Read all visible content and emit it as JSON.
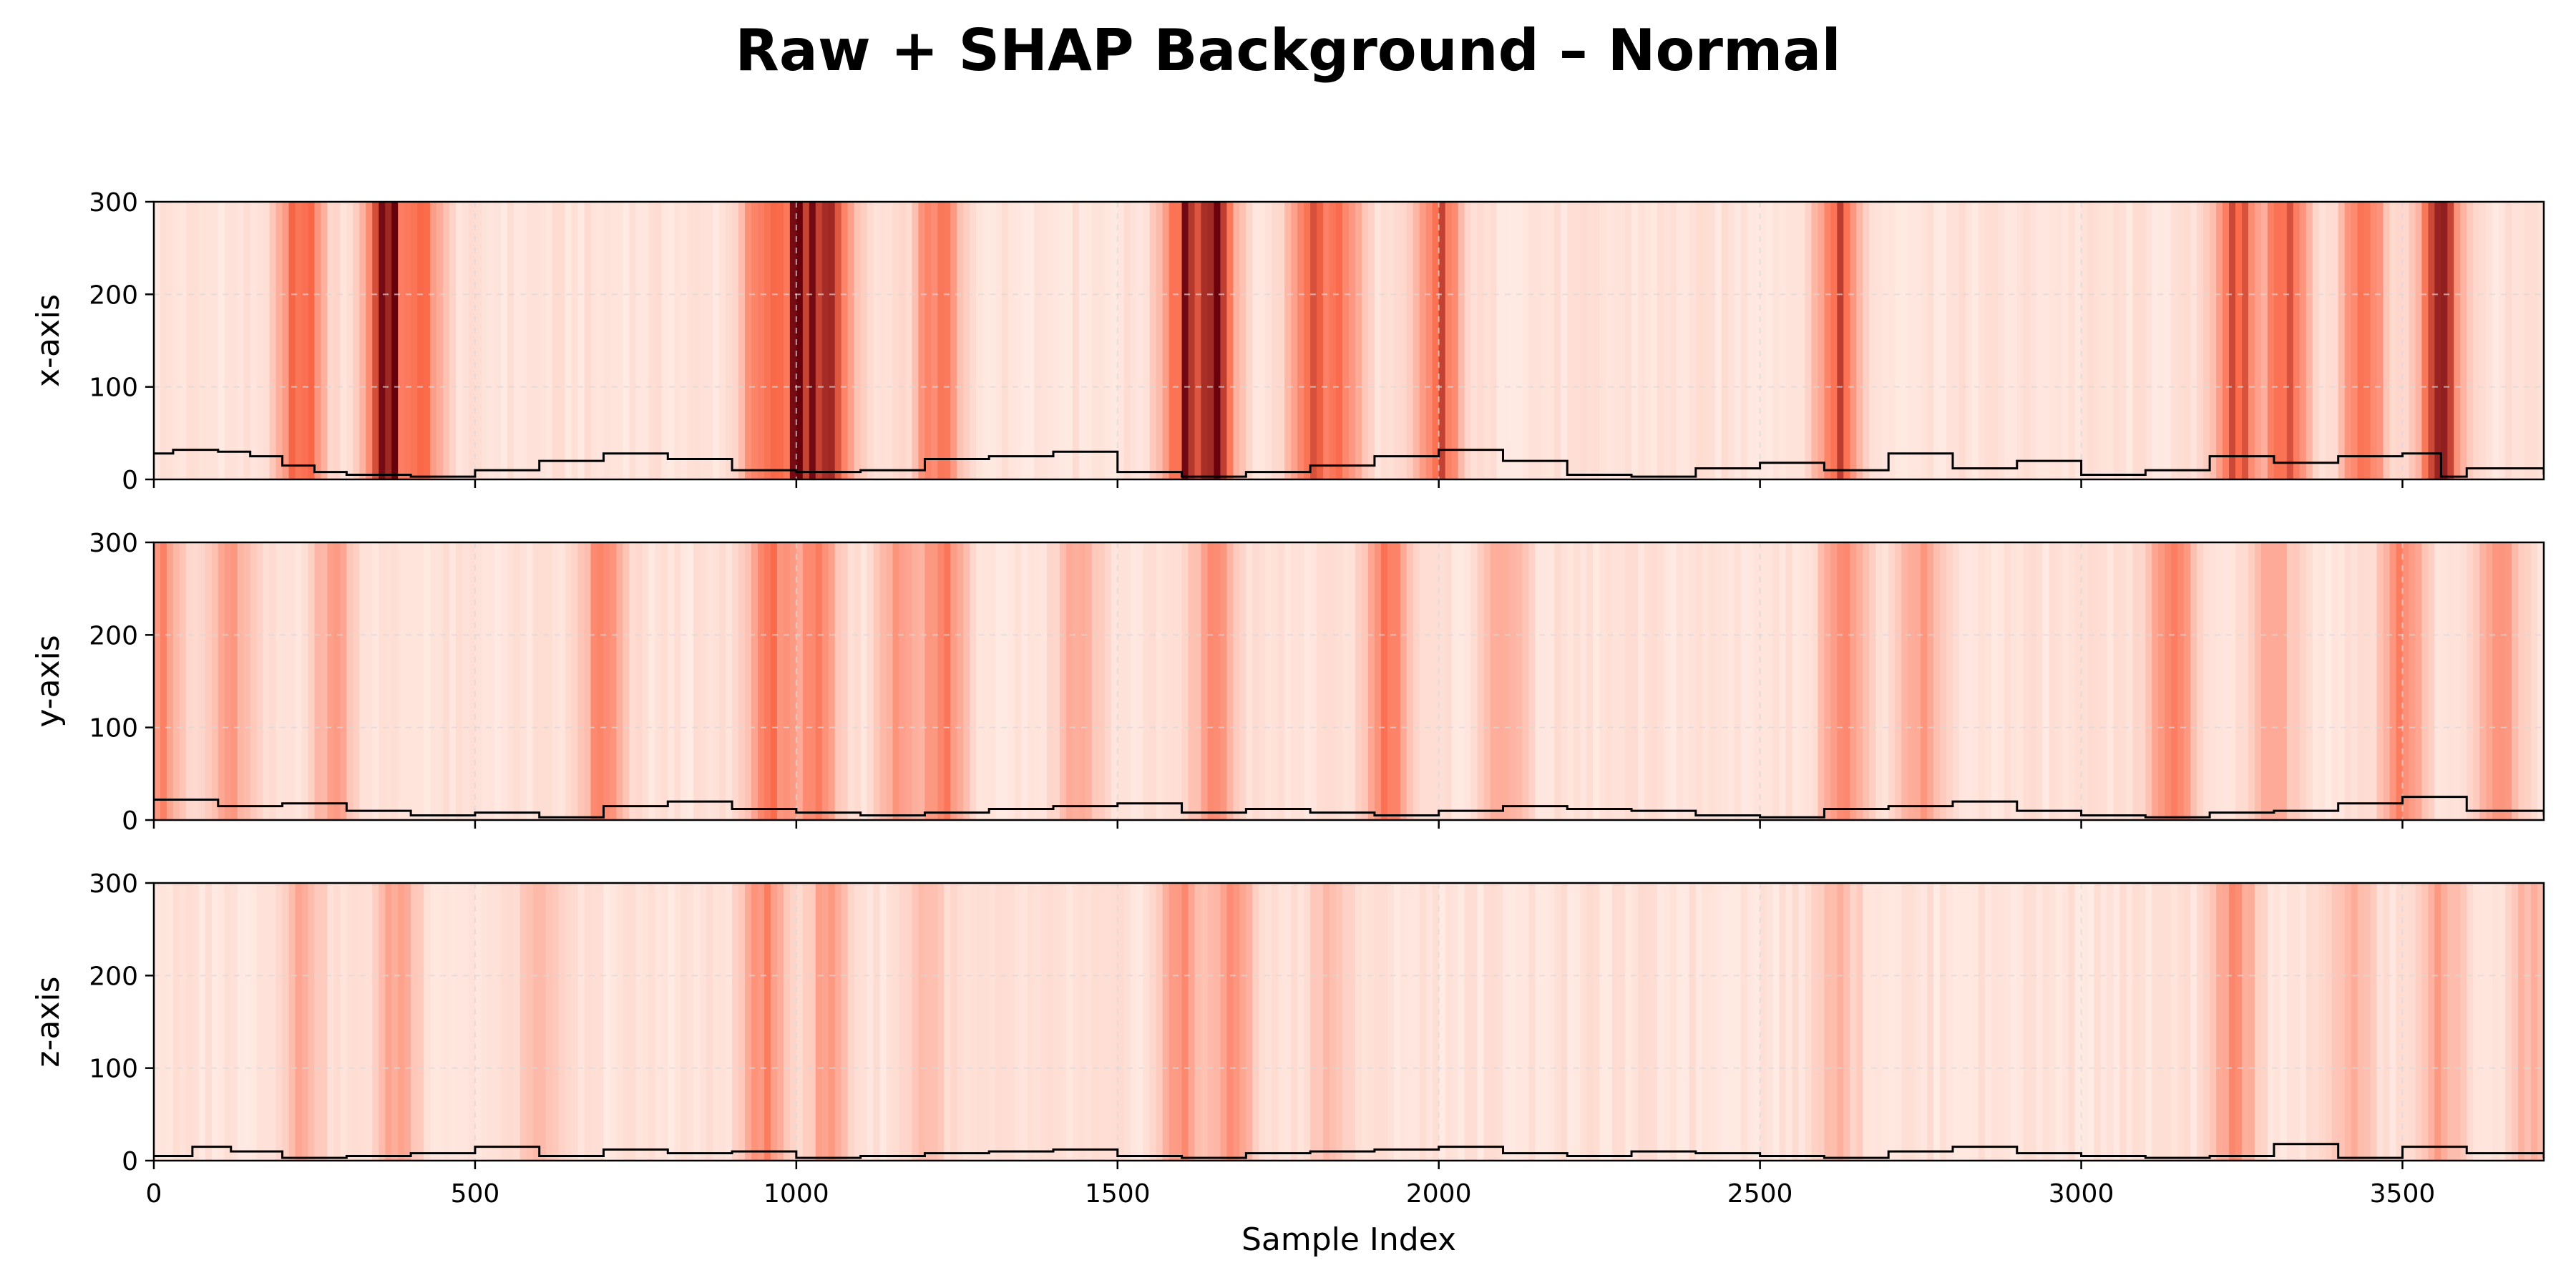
{
  "figure": {
    "title": "Raw + SHAP Background – Normal"
  },
  "chart_data": [
    {
      "type": "line",
      "ylabel": "x-axis",
      "xlim": [
        0,
        3720
      ],
      "ylim": [
        0,
        300
      ],
      "xticks": [
        0,
        500,
        1000,
        1500,
        2000,
        2500,
        3000,
        3500
      ],
      "yticks": [
        0,
        100,
        200,
        300
      ],
      "grid": true,
      "background": "SHAP importance heatmap (Reds colormap)",
      "background_peaks": [
        [
          230,
          0.75
        ],
        [
          360,
          0.92
        ],
        [
          420,
          0.6
        ],
        [
          950,
          0.65
        ],
        [
          1010,
          0.92
        ],
        [
          1060,
          0.65
        ],
        [
          1220,
          0.62
        ],
        [
          1600,
          0.7
        ],
        [
          1650,
          0.92
        ],
        [
          1800,
          0.6
        ],
        [
          1850,
          0.55
        ],
        [
          2000,
          0.72
        ],
        [
          2620,
          0.7
        ],
        [
          3240,
          0.78
        ],
        [
          3320,
          0.7
        ],
        [
          3440,
          0.62
        ],
        [
          3560,
          0.95
        ]
      ],
      "series": [
        {
          "x": [
            0,
            30,
            100,
            150,
            200,
            250,
            300,
            400,
            500,
            600,
            700,
            800,
            900,
            1000,
            1100,
            1200,
            1300,
            1400,
            1500,
            1600,
            1700,
            1800,
            1900,
            2000,
            2100,
            2200,
            2300,
            2400,
            2500,
            2600,
            2700,
            2800,
            2900,
            3000,
            3100,
            3200,
            3300,
            3400,
            3500,
            3560,
            3600,
            3720
          ],
          "y": [
            28,
            32,
            30,
            25,
            15,
            8,
            5,
            3,
            10,
            20,
            28,
            22,
            10,
            8,
            10,
            22,
            25,
            30,
            8,
            3,
            8,
            15,
            25,
            32,
            20,
            5,
            3,
            12,
            18,
            10,
            28,
            12,
            20,
            5,
            10,
            25,
            18,
            25,
            28,
            3,
            12,
            5
          ]
        }
      ]
    },
    {
      "type": "line",
      "ylabel": "y-axis",
      "xlim": [
        0,
        3720
      ],
      "ylim": [
        0,
        300
      ],
      "xticks": [
        0,
        500,
        1000,
        1500,
        2000,
        2500,
        3000,
        3500
      ],
      "yticks": [
        0,
        100,
        200,
        300
      ],
      "grid": true,
      "background": "SHAP importance heatmap (Reds colormap)",
      "background_peaks": [
        [
          10,
          0.5
        ],
        [
          120,
          0.4
        ],
        [
          280,
          0.35
        ],
        [
          700,
          0.5
        ],
        [
          960,
          0.6
        ],
        [
          1030,
          0.55
        ],
        [
          1160,
          0.4
        ],
        [
          1230,
          0.55
        ],
        [
          1440,
          0.35
        ],
        [
          1650,
          0.45
        ],
        [
          1920,
          0.6
        ],
        [
          2100,
          0.35
        ],
        [
          2630,
          0.6
        ],
        [
          2750,
          0.35
        ],
        [
          3140,
          0.6
        ],
        [
          3300,
          0.4
        ],
        [
          3500,
          0.55
        ],
        [
          3650,
          0.4
        ]
      ],
      "series": [
        {
          "x": [
            0,
            100,
            200,
            300,
            400,
            500,
            600,
            700,
            800,
            900,
            1000,
            1100,
            1200,
            1300,
            1400,
            1500,
            1600,
            1700,
            1800,
            1900,
            2000,
            2100,
            2200,
            2300,
            2400,
            2500,
            2600,
            2700,
            2800,
            2900,
            3000,
            3100,
            3200,
            3300,
            3400,
            3500,
            3600,
            3720
          ],
          "y": [
            22,
            15,
            18,
            10,
            5,
            8,
            3,
            15,
            20,
            12,
            8,
            5,
            8,
            12,
            15,
            18,
            8,
            12,
            8,
            5,
            10,
            15,
            12,
            10,
            5,
            3,
            12,
            15,
            20,
            10,
            5,
            3,
            8,
            10,
            18,
            25,
            10,
            5
          ]
        }
      ]
    },
    {
      "type": "line",
      "xlabel": "Sample Index",
      "ylabel": "z-axis",
      "xlim": [
        0,
        3720
      ],
      "ylim": [
        0,
        300
      ],
      "xticks": [
        0,
        500,
        1000,
        1500,
        2000,
        2500,
        3000,
        3500
      ],
      "yticks": [
        0,
        100,
        200,
        300
      ],
      "grid": true,
      "background": "SHAP importance heatmap (Reds colormap)",
      "background_peaks": [
        [
          230,
          0.3
        ],
        [
          380,
          0.35
        ],
        [
          600,
          0.22
        ],
        [
          950,
          0.5
        ],
        [
          1050,
          0.35
        ],
        [
          1200,
          0.22
        ],
        [
          1600,
          0.45
        ],
        [
          1680,
          0.4
        ],
        [
          1830,
          0.22
        ],
        [
          2620,
          0.25
        ],
        [
          3240,
          0.45
        ],
        [
          3420,
          0.28
        ],
        [
          3560,
          0.32
        ],
        [
          3700,
          0.25
        ]
      ],
      "series": [
        {
          "x": [
            0,
            60,
            120,
            200,
            300,
            400,
            500,
            600,
            700,
            800,
            900,
            1000,
            1100,
            1200,
            1300,
            1400,
            1500,
            1600,
            1700,
            1800,
            1900,
            2000,
            2100,
            2200,
            2300,
            2400,
            2500,
            2600,
            2700,
            2800,
            2900,
            3000,
            3100,
            3200,
            3300,
            3400,
            3500,
            3600,
            3720
          ],
          "y": [
            5,
            15,
            10,
            3,
            5,
            8,
            15,
            5,
            12,
            8,
            10,
            3,
            5,
            8,
            10,
            12,
            5,
            3,
            8,
            10,
            12,
            15,
            8,
            5,
            10,
            8,
            5,
            3,
            10,
            15,
            8,
            5,
            3,
            5,
            18,
            3,
            15,
            8,
            3
          ]
        }
      ]
    }
  ],
  "colors": {
    "line": "#000000",
    "grid": "#d9d9d9",
    "heat_low": "#fff5f0",
    "heat_mid": "#fb6a4a",
    "heat_high": "#67000d"
  }
}
